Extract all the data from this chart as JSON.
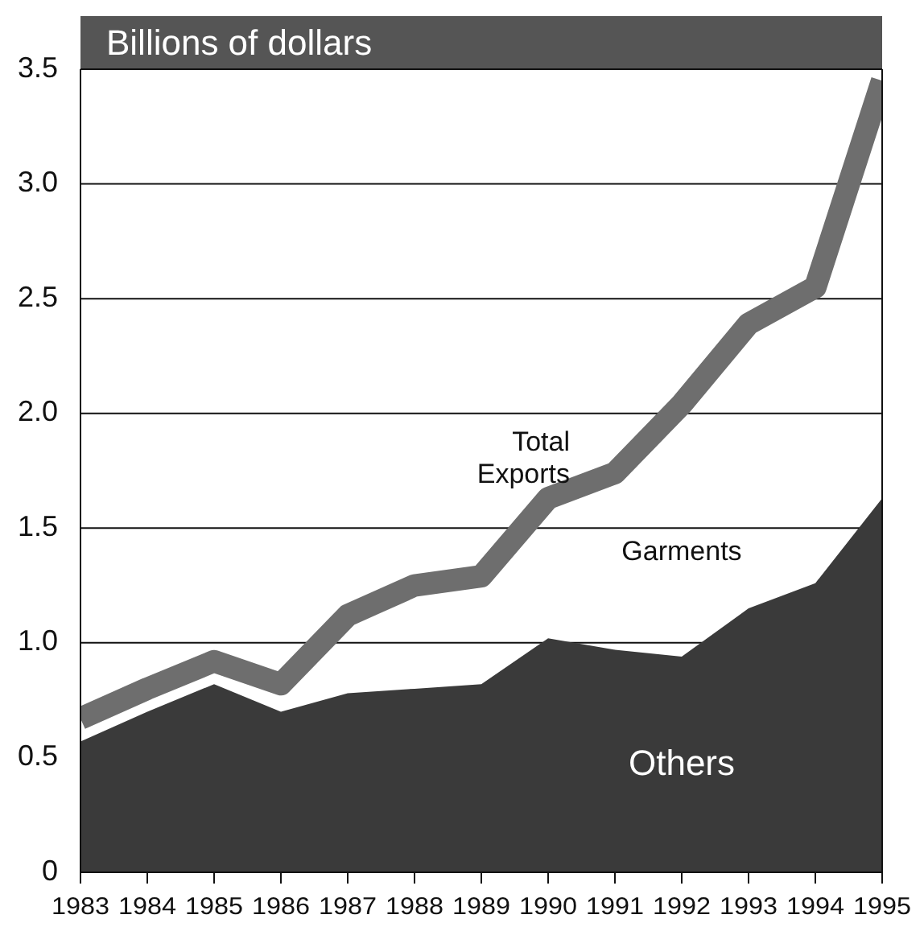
{
  "chart_data": {
    "type": "area",
    "ylabel": "Billions of dollars",
    "x": [
      1983,
      1984,
      1985,
      1986,
      1987,
      1988,
      1989,
      1990,
      1991,
      1992,
      1993,
      1994,
      1995
    ],
    "series": [
      {
        "name": "Others",
        "color": "#3a3a3a",
        "values": [
          0.57,
          0.7,
          0.82,
          0.7,
          0.78,
          0.8,
          0.82,
          1.02,
          0.97,
          0.94,
          1.15,
          1.26,
          1.63
        ]
      },
      {
        "name": "Total Exports",
        "type": "line",
        "color": "#6e6e6e",
        "values": [
          0.67,
          0.8,
          0.92,
          0.82,
          1.12,
          1.25,
          1.29,
          1.63,
          1.74,
          2.04,
          2.39,
          2.55,
          3.45
        ]
      }
    ],
    "annotations": [
      "Garments"
    ],
    "xlim": [
      1983,
      1995
    ],
    "xticks": [
      1983,
      1984,
      1985,
      1986,
      1987,
      1988,
      1989,
      1990,
      1991,
      1992,
      1993,
      1994,
      1995
    ],
    "ylim": [
      0,
      3.5
    ],
    "yticks": [
      0,
      0.5,
      {
        "value": 1,
        "label": "1.0"
      },
      1.5,
      {
        "value": 2,
        "label": "2.0"
      },
      2.5,
      {
        "value": 3,
        "label": "3.0"
      },
      3.5
    ],
    "grid": "y",
    "line_style": "solid"
  }
}
